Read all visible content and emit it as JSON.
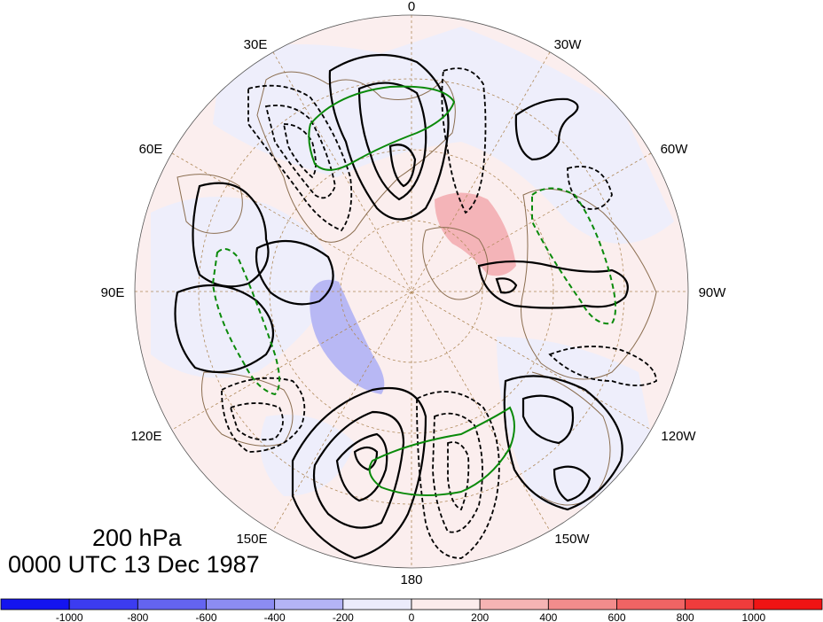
{
  "title": {
    "level": "200 hPa",
    "time": "0000 UTC 13 Dec 1987"
  },
  "longitude_labels": {
    "lon_0": "0",
    "lon_30w": "30W",
    "lon_60w": "60W",
    "lon_90w": "90W",
    "lon_120w": "120W",
    "lon_150w": "150W",
    "lon_180": "180",
    "lon_150e": "150E",
    "lon_120e": "120E",
    "lon_90e": "90E",
    "lon_60e": "60E",
    "lon_30e": "30E"
  },
  "colorbar": {
    "min": -1000,
    "max": 1000,
    "step": 200,
    "tick_labels": [
      "-1000",
      "-800",
      "-600",
      "-400",
      "-200",
      "0",
      "200",
      "400",
      "600",
      "800",
      "1000"
    ],
    "colors": [
      "#1414f0",
      "#3c3cf0",
      "#6464f0",
      "#8c8cf2",
      "#b4b4f6",
      "#ececfb",
      "#fbecec",
      "#f6b4b4",
      "#f28c8c",
      "#f06464",
      "#f03c3c",
      "#f01414"
    ]
  },
  "styles": {
    "positive_contour_color": "#000000",
    "negative_contour_dash": "dashed",
    "highlight_contour_color": "#0a8a0a",
    "coastline_color": "#8b6e50",
    "grid_color": "#b08a5a"
  }
}
